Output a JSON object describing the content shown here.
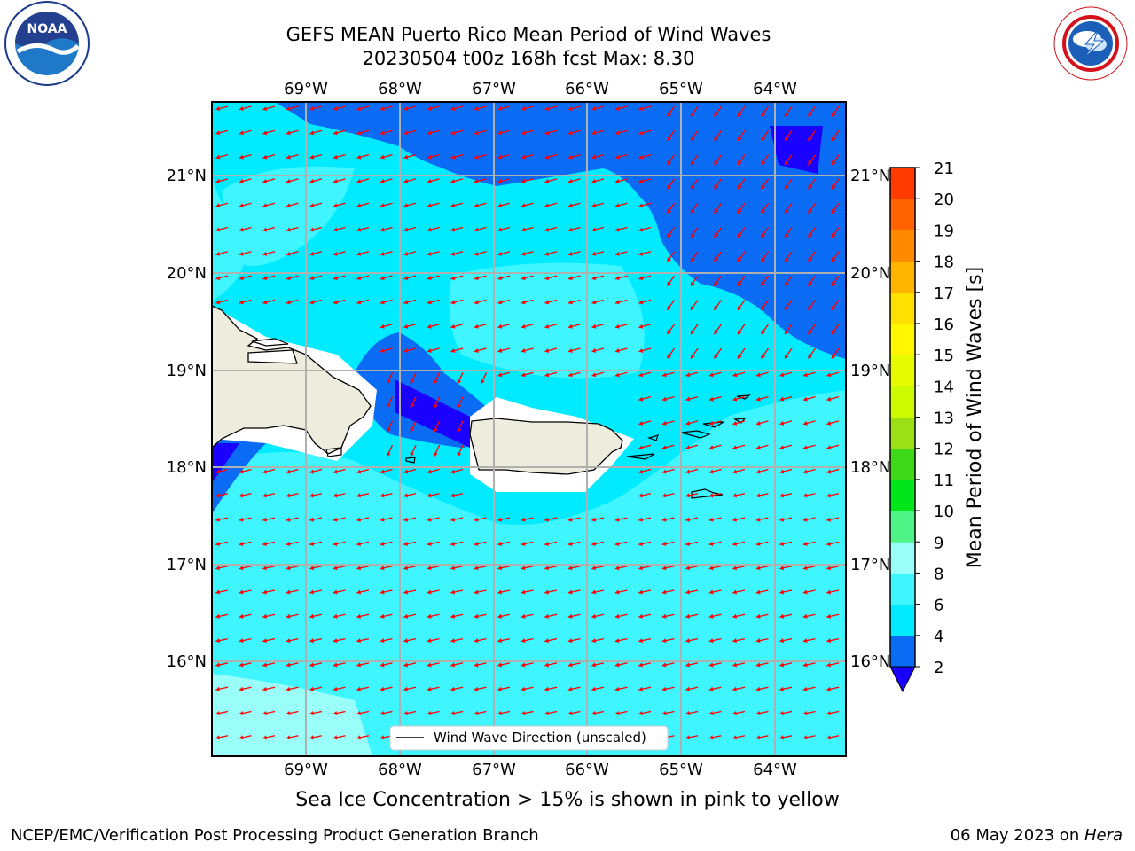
{
  "title": {
    "line1": "GEFS MEAN Puerto Rico Mean Period of Wind Waves",
    "line2": "20230504 t00z 168h fcst   Max: 8.30"
  },
  "map": {
    "lon_labels": [
      "69°W",
      "68°W",
      "67°W",
      "66°W",
      "65°W",
      "64°W"
    ],
    "lat_labels": [
      "21°N",
      "20°N",
      "19°N",
      "18°N",
      "17°N",
      "16°N"
    ],
    "legend_label": "Wind Wave Direction (unscaled)",
    "arrow_color": "#ff0000",
    "land_color": "#eeecdc"
  },
  "colorbar": {
    "title": "Mean Period of Wind Waves [s]",
    "ticks": [
      "2",
      "4",
      "6",
      "8",
      "9",
      "10",
      "11",
      "12",
      "13",
      "14",
      "15",
      "16",
      "17",
      "18",
      "19",
      "20",
      "21"
    ],
    "colors": [
      "#0a6cf5",
      "#00ebff",
      "#3ff5ff",
      "#9afff9",
      "#4ef586",
      "#00e61a",
      "#40d91a",
      "#9bdf14",
      "#cdfa00",
      "#e6fa00",
      "#fff600",
      "#ffe000",
      "#ffb400",
      "#ff8a00",
      "#ff6300",
      "#ff3b00"
    ],
    "extend_color": "#1a00ff"
  },
  "sea_ice_note": "Sea Ice Concentration > 15% is shown in pink to yellow",
  "footer": {
    "left": "NCEP/EMC/Verification Post Processing Product Generation Branch",
    "date": "06 May 2023 on ",
    "host": "Hera"
  },
  "logos": {
    "noaa": "NOAA",
    "nws": "NATIONAL WEATHER SERVICE"
  }
}
